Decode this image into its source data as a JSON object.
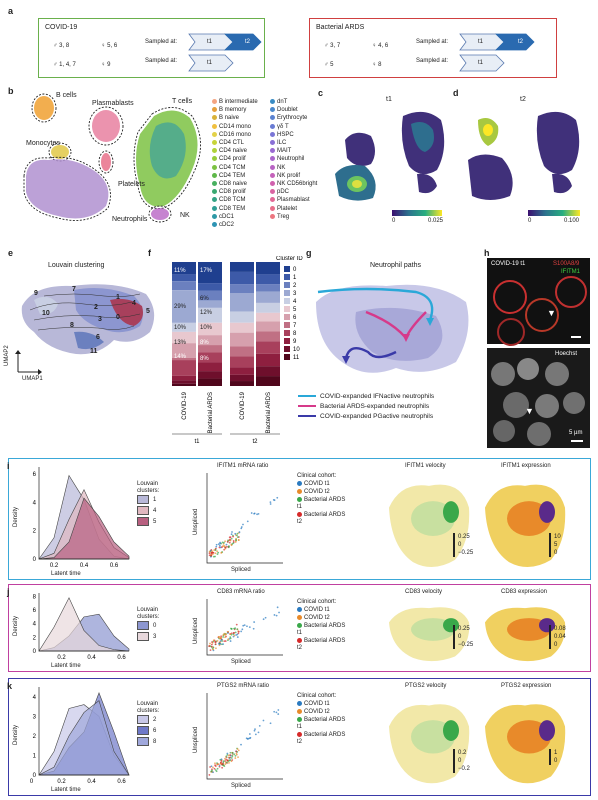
{
  "panel_a": {
    "label": "a",
    "covid": {
      "title": "COVID-19",
      "row1_male": "♂ 3, 8",
      "row1_female": "♀ 5, 6",
      "row2_male": "♂ 1, 4, 7",
      "row2_female": "♀ 9",
      "sampled_at": "Sampled at:",
      "t1": "t1",
      "t2": "t2"
    },
    "ards": {
      "title": "Bacterial ARDS",
      "row1_male": "♂ 3, 7",
      "row1_female": "♀ 4, 6",
      "row2_male": "♂ 5",
      "row2_female": "♀ 8",
      "sampled_at": "Sampled at:",
      "t1": "t1",
      "t2": "t2"
    }
  },
  "panel_b": {
    "label": "b",
    "clusters": [
      "B cells",
      "Plasmablasts",
      "T cells",
      "Monocytes",
      "Platelets",
      "NK",
      "Neutrophils"
    ],
    "legend_col1": [
      {
        "name": "B intermediate",
        "color": "#f4a582"
      },
      {
        "name": "B memory",
        "color": "#e6a03c"
      },
      {
        "name": "B naive",
        "color": "#d9b23a"
      },
      {
        "name": "CD14 mono",
        "color": "#f0c040"
      },
      {
        "name": "CD16 mono",
        "color": "#e3d24a"
      },
      {
        "name": "CD4 CTL",
        "color": "#c7d43a"
      },
      {
        "name": "CD4 naive",
        "color": "#b0d23a"
      },
      {
        "name": "CD4 prolif",
        "color": "#96cc3a"
      },
      {
        "name": "CD4 TCM",
        "color": "#7cc243"
      },
      {
        "name": "CD4 TEM",
        "color": "#5fb84a"
      },
      {
        "name": "CD8 naive",
        "color": "#48b060"
      },
      {
        "name": "CD8 prolif",
        "color": "#3aa870"
      },
      {
        "name": "CD8 TCM",
        "color": "#35a384"
      },
      {
        "name": "CD8 TEM",
        "color": "#2f9e94"
      },
      {
        "name": "cDC1",
        "color": "#2e99a6"
      },
      {
        "name": "cDC2",
        "color": "#2e94b4"
      }
    ],
    "legend_col2": [
      {
        "name": "dnT",
        "color": "#3a8cc4"
      },
      {
        "name": "Doublet",
        "color": "#4a88cc"
      },
      {
        "name": "Erythrocyte",
        "color": "#5a82d0"
      },
      {
        "name": "γδ T",
        "color": "#6a7cd4"
      },
      {
        "name": "HSPC",
        "color": "#7a76d6"
      },
      {
        "name": "ILC",
        "color": "#8a70d6"
      },
      {
        "name": "MAIT",
        "color": "#9a6ad2"
      },
      {
        "name": "Neutrophil",
        "color": "#aa66cc"
      },
      {
        "name": "NK",
        "color": "#b864c4"
      },
      {
        "name": "NK prolif",
        "color": "#c462ba"
      },
      {
        "name": "NK CD56bright",
        "color": "#d062ae"
      },
      {
        "name": "pDC",
        "color": "#da64a2"
      },
      {
        "name": "Plasmablast",
        "color": "#e26896"
      },
      {
        "name": "Platelet",
        "color": "#e86e8a"
      },
      {
        "name": "Treg",
        "color": "#ec7680"
      }
    ]
  },
  "panel_c": {
    "label": "c",
    "title": "t1",
    "cb_min": "0",
    "cb_max": "0.025"
  },
  "panel_d": {
    "label": "d",
    "title": "t2",
    "cb_min": "0",
    "cb_max": "0.100"
  },
  "panel_e": {
    "label": "e",
    "title": "Louvain clustering",
    "ylab": "UMAP2",
    "xlab": "UMAP1",
    "cluster_labels": [
      "9",
      "10",
      "7",
      "1",
      "2",
      "3",
      "0",
      "4",
      "5",
      "8",
      "6",
      "11"
    ]
  },
  "panel_f": {
    "label": "f",
    "legend_title": "Cluster ID",
    "clusters": [
      {
        "id": "0",
        "color": "#1f3f8f"
      },
      {
        "id": "1",
        "color": "#3d5aa8"
      },
      {
        "id": "2",
        "color": "#6b80bf"
      },
      {
        "id": "3",
        "color": "#9ca9d2"
      },
      {
        "id": "4",
        "color": "#c8cfe3"
      },
      {
        "id": "5",
        "color": "#e8c8cf"
      },
      {
        "id": "6",
        "color": "#d6a0ad"
      },
      {
        "id": "7",
        "color": "#c07084"
      },
      {
        "id": "8",
        "color": "#a8405c"
      },
      {
        "id": "9",
        "color": "#8e1f3f"
      },
      {
        "id": "10",
        "color": "#6e0f2c"
      },
      {
        "id": "11",
        "color": "#50061c"
      }
    ],
    "bar_labels": [
      "COVID-19",
      "Bacterial ARDS",
      "COVID-19",
      "Bacterial ARDS"
    ],
    "group_labels": [
      "t1",
      "t2"
    ],
    "pct_labels": [
      "11%",
      "17%",
      "29%",
      "6%",
      "12%",
      "10%",
      "10%",
      "13%",
      "8%",
      "14%",
      "8%"
    ]
  },
  "panel_g": {
    "label": "g",
    "title": "Neutrophil paths",
    "legend": [
      {
        "text": "COVID-expanded IFNactive neutrophils",
        "color": "#2aa8d8"
      },
      {
        "text": "Bacterial ARDS-expanded neutrophils",
        "color": "#d63a8a"
      },
      {
        "text": "COVID-expanded PGactive neutrophils",
        "color": "#3a3aa8"
      }
    ]
  },
  "panel_h": {
    "label": "h",
    "top_label_1": "COVID-19 t1",
    "top_label_2": "S100A8/9",
    "top_label_3": "IFITM1",
    "bottom_label": "Hoechst",
    "scale": "5 µm"
  },
  "panel_i": {
    "label": "i",
    "density_ylabel": "Density",
    "density_xlabel": "Latent time",
    "density_legend_title": "Louvain clusters:",
    "density_legend": [
      {
        "id": "1",
        "color": "#b8b8d8"
      },
      {
        "id": "4",
        "color": "#e0b8c0"
      },
      {
        "id": "5",
        "color": "#b86080"
      }
    ],
    "ratio_title": "IFITM1 mRNA ratio",
    "ratio_ylabel": "Unspliced",
    "ratio_xlabel": "Spliced",
    "cohort_title": "Clinical cohort:",
    "velocity_title": "IFITM1 velocity",
    "expression_title": "IFITM1 expression",
    "vel_ticks": [
      "0.25",
      "0",
      "−0.25"
    ],
    "exp_ticks": [
      "10",
      "5",
      "0"
    ]
  },
  "panel_j": {
    "label": "j",
    "density_ylabel": "Density",
    "density_xlabel": "Latent time",
    "density_legend_title": "Louvain clusters:",
    "density_legend": [
      {
        "id": "0",
        "color": "#8c96d0"
      },
      {
        "id": "3",
        "color": "#e8d8dc"
      }
    ],
    "ratio_title": "CD83 mRNA ratio",
    "ratio_ylabel": "Unspliced",
    "ratio_xlabel": "Spliced",
    "cohort_title": "Clinical cohort:",
    "velocity_title": "CD83 velocity",
    "expression_title": "CD83 expression",
    "vel_ticks": [
      "0.25",
      "0",
      "−0.25"
    ],
    "exp_ticks": [
      "0.08",
      "0.04",
      "0"
    ]
  },
  "panel_k": {
    "label": "k",
    "density_ylabel": "Density",
    "density_xlabel": "Latent time",
    "density_legend_title": "Louvain clusters:",
    "density_legend": [
      {
        "id": "2",
        "color": "#c8c8e8"
      },
      {
        "id": "6",
        "color": "#6e78c8"
      },
      {
        "id": "8",
        "color": "#a0a8dc"
      }
    ],
    "ratio_title": "PTGS2 mRNA ratio",
    "ratio_ylabel": "Unspliced",
    "ratio_xlabel": "Spliced",
    "cohort_title": "Clinical cohort:",
    "velocity_title": "PTGS2 velocity",
    "expression_title": "PTGS2 expression",
    "vel_ticks": [
      "0.2",
      "0",
      "−0.2"
    ],
    "exp_ticks": [
      "1",
      "0"
    ]
  },
  "cohorts": [
    {
      "name": "COVID t1",
      "color": "#2a7ac0"
    },
    {
      "name": "COVID t2",
      "color": "#e88a2a"
    },
    {
      "name": "Bacterial ARDS t1",
      "color": "#3aa84a"
    },
    {
      "name": "Bacterial ARDS t2",
      "color": "#d62a2a"
    }
  ],
  "chart_data": [
    {
      "type": "area",
      "panel": "i",
      "xlabel": "Latent time",
      "ylabel": "Density",
      "x": [
        0.1,
        0.2,
        0.3,
        0.4,
        0.5,
        0.6,
        0.7
      ],
      "xticks": [
        "0.2",
        "0.4",
        "0.6"
      ],
      "yticks": [
        "0",
        "2",
        "4",
        "6"
      ],
      "ylim": [
        0,
        6.5
      ],
      "series": [
        {
          "name": "1",
          "values": [
            0.0,
            1.5,
            5.9,
            4.2,
            1.4,
            0.2,
            0.0
          ]
        },
        {
          "name": "4",
          "values": [
            0.0,
            0.4,
            2.8,
            4.9,
            2.6,
            0.8,
            0.1
          ]
        },
        {
          "name": "5",
          "values": [
            0.0,
            0.1,
            1.2,
            4.3,
            3.0,
            1.2,
            0.2
          ]
        }
      ]
    },
    {
      "type": "area",
      "panel": "j",
      "xlabel": "Latent time",
      "ylabel": "Density",
      "x": [
        0.05,
        0.15,
        0.25,
        0.35,
        0.45,
        0.55,
        0.65
      ],
      "xticks": [
        "0.2",
        "0.4",
        "0.6"
      ],
      "yticks": [
        "0",
        "2",
        "4",
        "6",
        "8"
      ],
      "ylim": [
        0,
        8.5
      ],
      "series": [
        {
          "name": "0",
          "values": [
            0.0,
            0.5,
            2.2,
            5.0,
            5.4,
            2.2,
            0.3
          ]
        },
        {
          "name": "3",
          "values": [
            0.0,
            3.5,
            7.8,
            3.0,
            0.8,
            0.2,
            0.0
          ]
        }
      ]
    },
    {
      "type": "area",
      "panel": "k",
      "xlabel": "Latent time",
      "ylabel": "Density",
      "x": [
        0.05,
        0.15,
        0.25,
        0.35,
        0.45,
        0.55,
        0.65
      ],
      "xticks": [
        "0",
        "0.2",
        "0.4",
        "0.6"
      ],
      "yticks": [
        "0",
        "1",
        "2",
        "3",
        "4"
      ],
      "ylim": [
        0,
        4.5
      ],
      "series": [
        {
          "name": "2",
          "values": [
            0.0,
            1.2,
            3.4,
            3.6,
            3.0,
            1.0,
            0.0
          ]
        },
        {
          "name": "6",
          "values": [
            0.0,
            0.2,
            1.4,
            2.2,
            4.2,
            2.2,
            0.0
          ]
        },
        {
          "name": "8",
          "values": [
            0.0,
            0.4,
            2.0,
            3.2,
            3.8,
            1.2,
            0.0
          ]
        }
      ]
    },
    {
      "type": "bar",
      "panel": "f",
      "categories": [
        "COVID-19 t1",
        "Bacterial ARDS t1",
        "COVID-19 t2",
        "Bacterial ARDS t2"
      ],
      "series": [
        {
          "name": "0",
          "values": [
            11,
            17,
            8,
            10
          ]
        },
        {
          "name": "1",
          "values": [
            6,
            6,
            10,
            8
          ]
        },
        {
          "name": "2",
          "values": [
            8,
            8,
            7,
            6
          ]
        },
        {
          "name": "3",
          "values": [
            29,
            6,
            15,
            9
          ]
        },
        {
          "name": "4",
          "values": [
            8,
            12,
            9,
            8
          ]
        },
        {
          "name": "5",
          "values": [
            10,
            10,
            8,
            7
          ]
        },
        {
          "name": "6",
          "values": [
            13,
            8,
            11,
            8
          ]
        },
        {
          "name": "7",
          "values": [
            2,
            6,
            8,
            8
          ]
        },
        {
          "name": "8",
          "values": [
            14,
            8,
            9,
            10
          ]
        },
        {
          "name": "9",
          "values": [
            4,
            7,
            6,
            10
          ]
        },
        {
          "name": "10",
          "values": [
            3,
            6,
            5,
            8
          ]
        },
        {
          "name": "11",
          "values": [
            2,
            6,
            4,
            8
          ]
        }
      ]
    }
  ]
}
